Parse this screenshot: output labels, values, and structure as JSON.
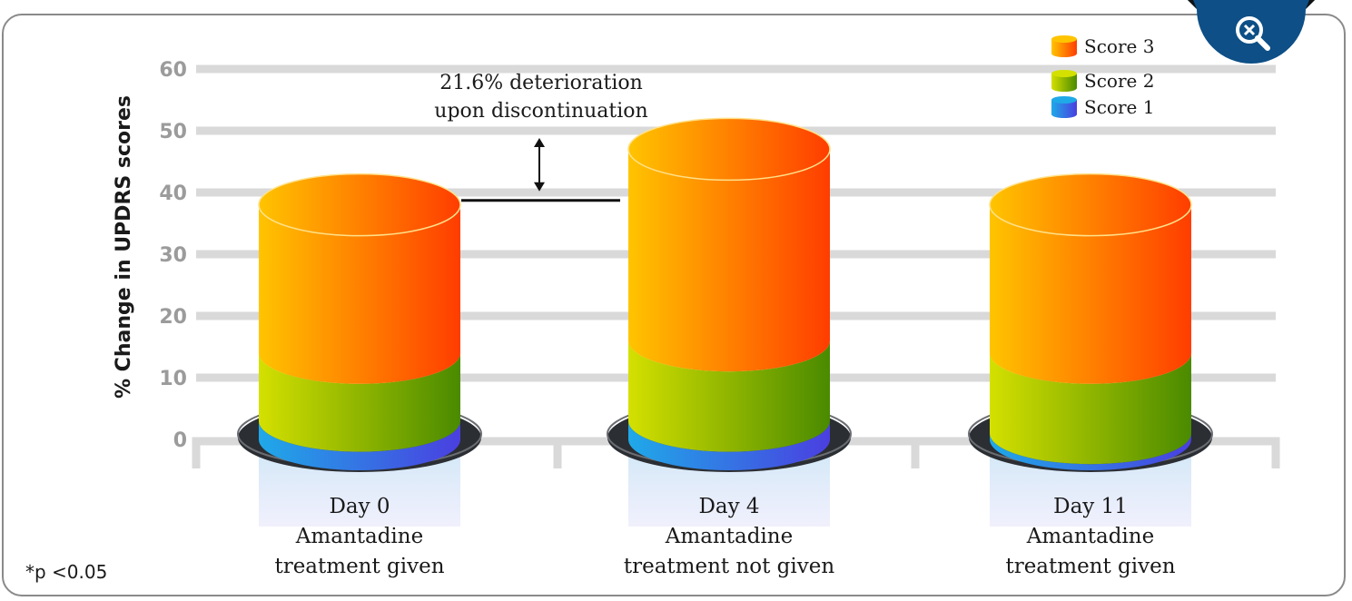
{
  "chart_data": {
    "type": "bar",
    "stacked": true,
    "style": "3d-cylinder",
    "ylabel": "% Change in UPDRS scores",
    "ylim": [
      0,
      60
    ],
    "yticks": [
      0,
      10,
      20,
      30,
      40,
      50,
      60
    ],
    "grid": true,
    "legend_position": "top-right",
    "categories": [
      {
        "day": "Day 0",
        "line1": "Amantadine",
        "line2": "treatment given"
      },
      {
        "day": "Day 4",
        "line1": "Amantadine",
        "line2": "treatment not given"
      },
      {
        "day": "Day 11",
        "line1": "Amantadine",
        "line2": "treatment given"
      }
    ],
    "series": [
      {
        "name": "Score 1",
        "values": [
          3,
          3,
          1
        ],
        "color_start": "#1fa9e8",
        "color_end": "#4a3fe0"
      },
      {
        "name": "Score 2",
        "values": [
          11,
          13,
          13
        ],
        "color_start": "#d4e000",
        "color_end": "#4a8a00"
      },
      {
        "name": "Score 3",
        "values": [
          24,
          31,
          24
        ],
        "color_start": "#ffc400",
        "color_end": "#ff3d00"
      }
    ],
    "legend_order": [
      "Score 3",
      "Score 2",
      "Score 1"
    ],
    "annotation": {
      "line1": "21.6% deterioration",
      "line2": "upon discontinuation",
      "reference_value": 39,
      "from_category": 0,
      "to_category": 1
    }
  },
  "footnote": "*p <0.05",
  "zoom": {
    "icon": "zoom-out-magnifier-icon",
    "bg": "#0d4f86"
  }
}
